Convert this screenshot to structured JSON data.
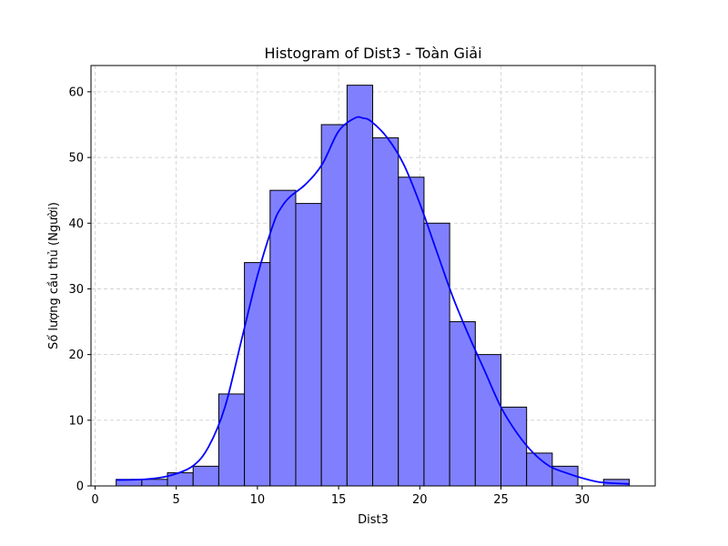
{
  "chart_data": {
    "type": "bar",
    "title": "Histogram of Dist3 - Toàn Giải",
    "xlabel": "Dist3",
    "ylabel": "Số lượng cầu thủ (Người)",
    "xlim": [
      -0.25,
      34.5
    ],
    "ylim": [
      0,
      64
    ],
    "xticks": [
      0,
      5,
      10,
      15,
      20,
      25,
      30
    ],
    "yticks": [
      0,
      10,
      20,
      30,
      40,
      50,
      60
    ],
    "grid": true,
    "bin_edges": [
      1.3,
      2.88,
      4.46,
      6.04,
      7.62,
      9.2,
      10.78,
      12.36,
      13.94,
      15.52,
      17.1,
      18.68,
      20.26,
      21.84,
      23.42,
      25.0,
      26.58,
      28.16,
      29.74,
      31.32,
      32.9
    ],
    "counts": [
      1,
      1,
      2,
      3,
      14,
      34,
      45,
      43,
      55,
      61,
      53,
      47,
      40,
      25,
      20,
      12,
      5,
      3,
      0,
      1
    ],
    "kde": {
      "x": [
        1.3,
        3.0,
        4.5,
        6.0,
        7.0,
        8.0,
        9.0,
        10.0,
        11.0,
        11.5,
        12.0,
        13.0,
        14.0,
        15.0,
        16.0,
        16.5,
        17.0,
        18.0,
        19.0,
        20.0,
        21.0,
        22.0,
        23.0,
        24.0,
        25.0,
        26.0,
        27.0,
        28.0,
        29.0,
        30.0,
        31.0,
        32.0,
        32.9
      ],
      "y": [
        0.9,
        1.0,
        1.5,
        3.0,
        6.0,
        12.0,
        22.0,
        32.0,
        40.0,
        42.5,
        44.0,
        46.0,
        49.0,
        54.0,
        56.0,
        56.0,
        55.5,
        53.0,
        49.0,
        43.0,
        36.0,
        29.0,
        23.0,
        17.5,
        12.0,
        8.0,
        5.0,
        3.0,
        2.0,
        1.2,
        0.6,
        0.4,
        0.3
      ]
    },
    "colors": {
      "bar_fill": "#8080ff",
      "bar_edge": "#000000",
      "kde_line": "#0000ff",
      "grid": "#cccccc"
    }
  }
}
